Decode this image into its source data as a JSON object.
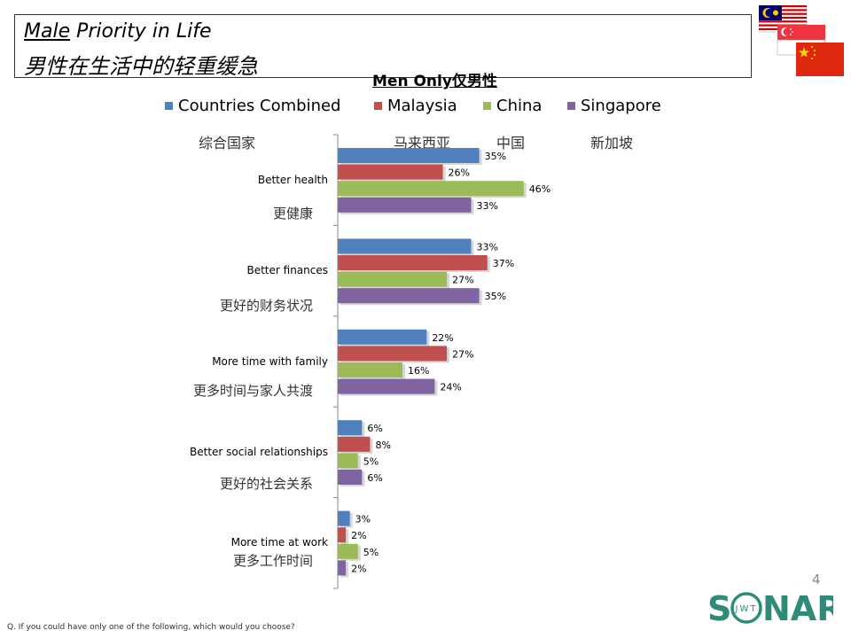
{
  "header": {
    "title_en_underlined": "Male",
    "title_en_rest": " Priority in Life",
    "title_zh": "男性在生活中的轻重缓急",
    "subtitle": "Men Only仅男性"
  },
  "legend": {
    "items": [
      {
        "label": "Countries Combined",
        "label_zh": "综合国家",
        "color": "#4F81BD"
      },
      {
        "label": "Malaysia",
        "label_zh": "马来西亚",
        "color": "#C0504D"
      },
      {
        "label": "China",
        "label_zh": "中国",
        "color": "#9BBB59"
      },
      {
        "label": "Singapore",
        "label_zh": "新加坡",
        "color": "#8064A2"
      }
    ]
  },
  "chart_data": {
    "type": "bar",
    "orientation": "horizontal",
    "categories": [
      "Better health",
      "Better finances",
      "More time with family",
      "Better social relationships",
      "More time at work"
    ],
    "categories_zh": [
      "更健康",
      "更好的财务状况",
      "更多时间与家人共渡",
      "更好的社会关系",
      "更多工作时间"
    ],
    "series": [
      {
        "name": "Countries Combined",
        "values": [
          35,
          33,
          22,
          6,
          3
        ]
      },
      {
        "name": "Malaysia",
        "values": [
          26,
          37,
          27,
          8,
          2
        ]
      },
      {
        "name": "China",
        "values": [
          46,
          27,
          16,
          5,
          5
        ]
      },
      {
        "name": "Singapore",
        "values": [
          33,
          35,
          24,
          6,
          2
        ]
      }
    ],
    "value_labels": [
      [
        "35%",
        "33%",
        "22%",
        "6%",
        "3%"
      ],
      [
        "26%",
        "37%",
        "27%",
        "8%",
        "2%"
      ],
      [
        "46%",
        "27%",
        "16%",
        "5%",
        "5%"
      ],
      [
        "33%",
        "35%",
        "24%",
        "6%",
        "2%"
      ]
    ],
    "xlim": [
      0,
      100
    ],
    "grid": false,
    "legend_position": "top"
  },
  "footer": {
    "question": "Q. If you could have only one of the following, which would you choose?",
    "page_number": "4",
    "logo_text_left": "S",
    "logo_text_inner": "JWT",
    "logo_text_right": "NAR"
  }
}
